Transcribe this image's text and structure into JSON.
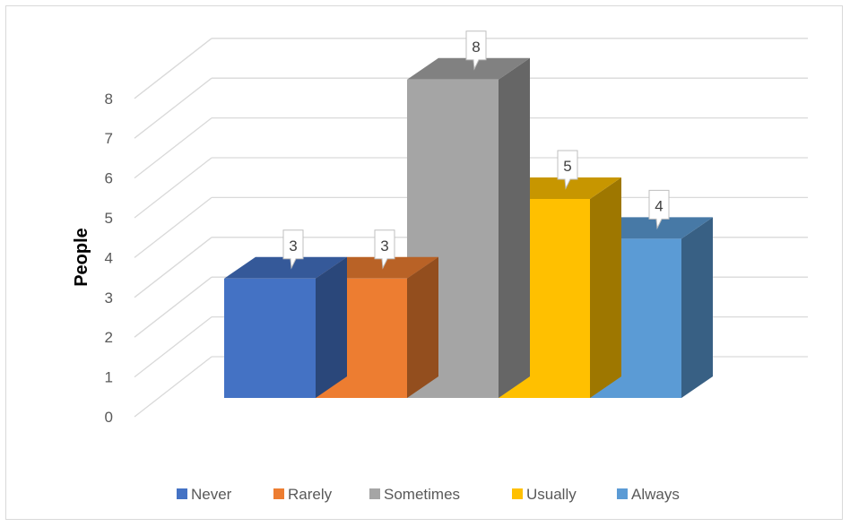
{
  "chart_data": {
    "type": "bar",
    "style": "3d-column",
    "title": "",
    "xlabel": "",
    "ylabel": "People",
    "ylim": [
      0,
      8
    ],
    "yticks": [
      "0",
      "1",
      "2",
      "3",
      "4",
      "5",
      "6",
      "7",
      "8"
    ],
    "grid": true,
    "legend_position": "bottom",
    "data_labels": true,
    "series": [
      {
        "name": "Never",
        "value": 3,
        "color": "#4472c4"
      },
      {
        "name": "Rarely",
        "value": 3,
        "color": "#ed7d31"
      },
      {
        "name": "Sometimes",
        "value": 8,
        "color": "#a5a5a5"
      },
      {
        "name": "Usually",
        "value": 5,
        "color": "#ffc000"
      },
      {
        "name": "Always",
        "value": 4,
        "color": "#5b9bd5"
      }
    ]
  }
}
